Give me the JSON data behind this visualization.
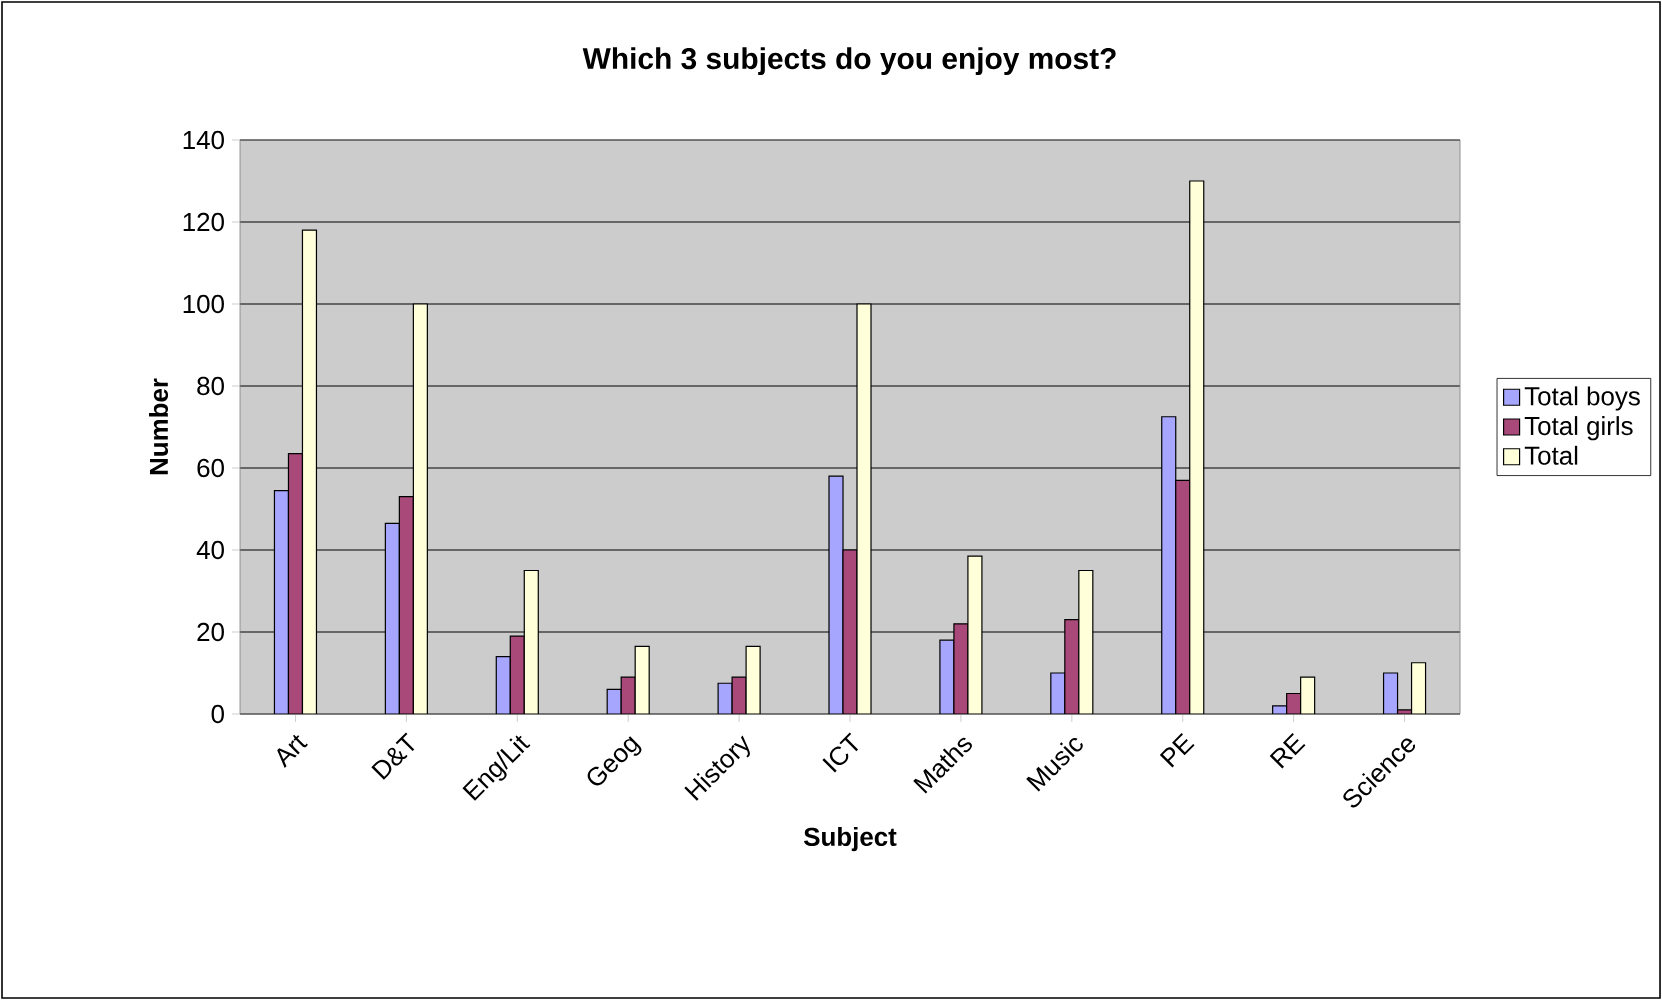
{
  "chart_data": {
    "type": "bar",
    "title": "Which 3 subjects do you enjoy most?",
    "xlabel": "Subject",
    "ylabel": "Number",
    "categories": [
      "Art",
      "D&T",
      "Eng/Lit",
      "Geog",
      "History",
      "ICT",
      "Maths",
      "Music",
      "PE",
      "RE",
      "Science"
    ],
    "series": [
      {
        "name": "Total boys",
        "color": "#a6a6ff",
        "values": [
          54.5,
          46.5,
          14,
          6,
          7.5,
          58,
          18,
          10,
          72.5,
          2,
          10
        ]
      },
      {
        "name": "Total girls",
        "color": "#a8497a",
        "values": [
          63.5,
          53,
          19,
          9,
          9,
          40,
          22,
          23,
          57,
          5,
          1
        ]
      },
      {
        "name": "Total",
        "color": "#ffffd9",
        "values": [
          118,
          100,
          35,
          16.5,
          16.5,
          100,
          38.5,
          35,
          130,
          9,
          12.5
        ]
      }
    ],
    "ylim": [
      0,
      140
    ],
    "yticks": [
      0,
      20,
      40,
      60,
      80,
      100,
      120,
      140
    ],
    "grid": "y",
    "legend": "right"
  }
}
